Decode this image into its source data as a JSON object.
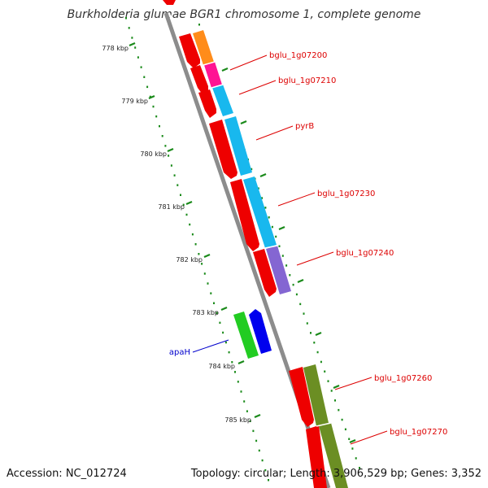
{
  "title": "Burkholderia glumae BGR1 chromosome 1, complete genome",
  "footer": {
    "accession": "Accession: NC_012724",
    "summary": "Topology: circular; Length: 3,906,529 bp; Genes: 3,352"
  },
  "colors": {
    "backbone": "#8c8c8c",
    "tick": "#1a8a1a",
    "red": "#ee0000",
    "orange": "#ff8c1a",
    "pink": "#ff1493",
    "cyan": "#18b8ee",
    "purple": "#8466d2",
    "green": "#22cc22",
    "blue": "#0000ee",
    "olive": "#6b8e23",
    "label_red": "#dd0000",
    "label_blue": "#0000cc"
  },
  "kbp_labels": [
    "778 kbp",
    "779 kbp",
    "780 kbp",
    "781 kbp",
    "782 kbp",
    "783 kbp",
    "784 kbp",
    "785 kbp"
  ],
  "gene_labels": [
    "bglu_1g07200",
    "bglu_1g07210",
    "pyrB",
    "bglu_1g07230",
    "bglu_1g07240",
    "apaH",
    "bglu_1g07260",
    "bglu_1g07270"
  ]
}
